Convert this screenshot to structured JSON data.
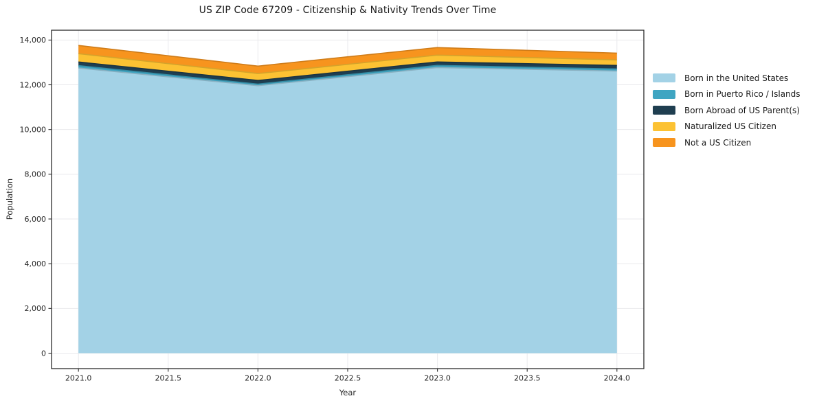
{
  "chart_data": {
    "type": "area",
    "stacked": true,
    "title": "US ZIP Code 67209 - Citizenship & Nativity Trends Over Time",
    "xlabel": "Year",
    "ylabel": "Population",
    "x": [
      2021,
      2022,
      2023,
      2024
    ],
    "series": [
      {
        "name": "Born in the United States",
        "color": "#a3d2e6",
        "values": [
          12750,
          11960,
          12770,
          12615
        ]
      },
      {
        "name": "Born in Puerto Rico / Islands",
        "color": "#3fa5c2",
        "values": [
          105,
          70,
          95,
          95
        ]
      },
      {
        "name": "Born Abroad of US Parent(s)",
        "color": "#1f3e50",
        "values": [
          165,
          165,
          155,
          155
        ]
      },
      {
        "name": "Naturalized US Citizen",
        "color": "#fcc233",
        "values": [
          370,
          310,
          305,
          245
        ]
      },
      {
        "name": "Not a US Citizen",
        "color": "#f7941e",
        "values": [
          370,
          330,
          340,
          305
        ]
      }
    ],
    "x_ticks": [
      2021,
      2021.5,
      2022,
      2022.5,
      2023,
      2023.5,
      2024
    ],
    "x_tick_labels": [
      "2021.0",
      "2021.5",
      "2022.0",
      "2022.5",
      "2023.0",
      "2023.5",
      "2024.0"
    ],
    "y_ticks": [
      0,
      2000,
      4000,
      6000,
      8000,
      10000,
      12000,
      14000
    ],
    "y_tick_labels": [
      "0",
      "2,000",
      "4,000",
      "6,000",
      "8,000",
      "10,000",
      "12,000",
      "14,000"
    ],
    "xlim": [
      2020.85,
      2024.15
    ],
    "ylim": [
      -690,
      14440
    ],
    "grid": true,
    "legend_position": "right-outside",
    "background_color": "#ffffff",
    "grid_color": "#e9e9ec",
    "spine_color": "#2b2b2b",
    "text_color": "#262626"
  }
}
